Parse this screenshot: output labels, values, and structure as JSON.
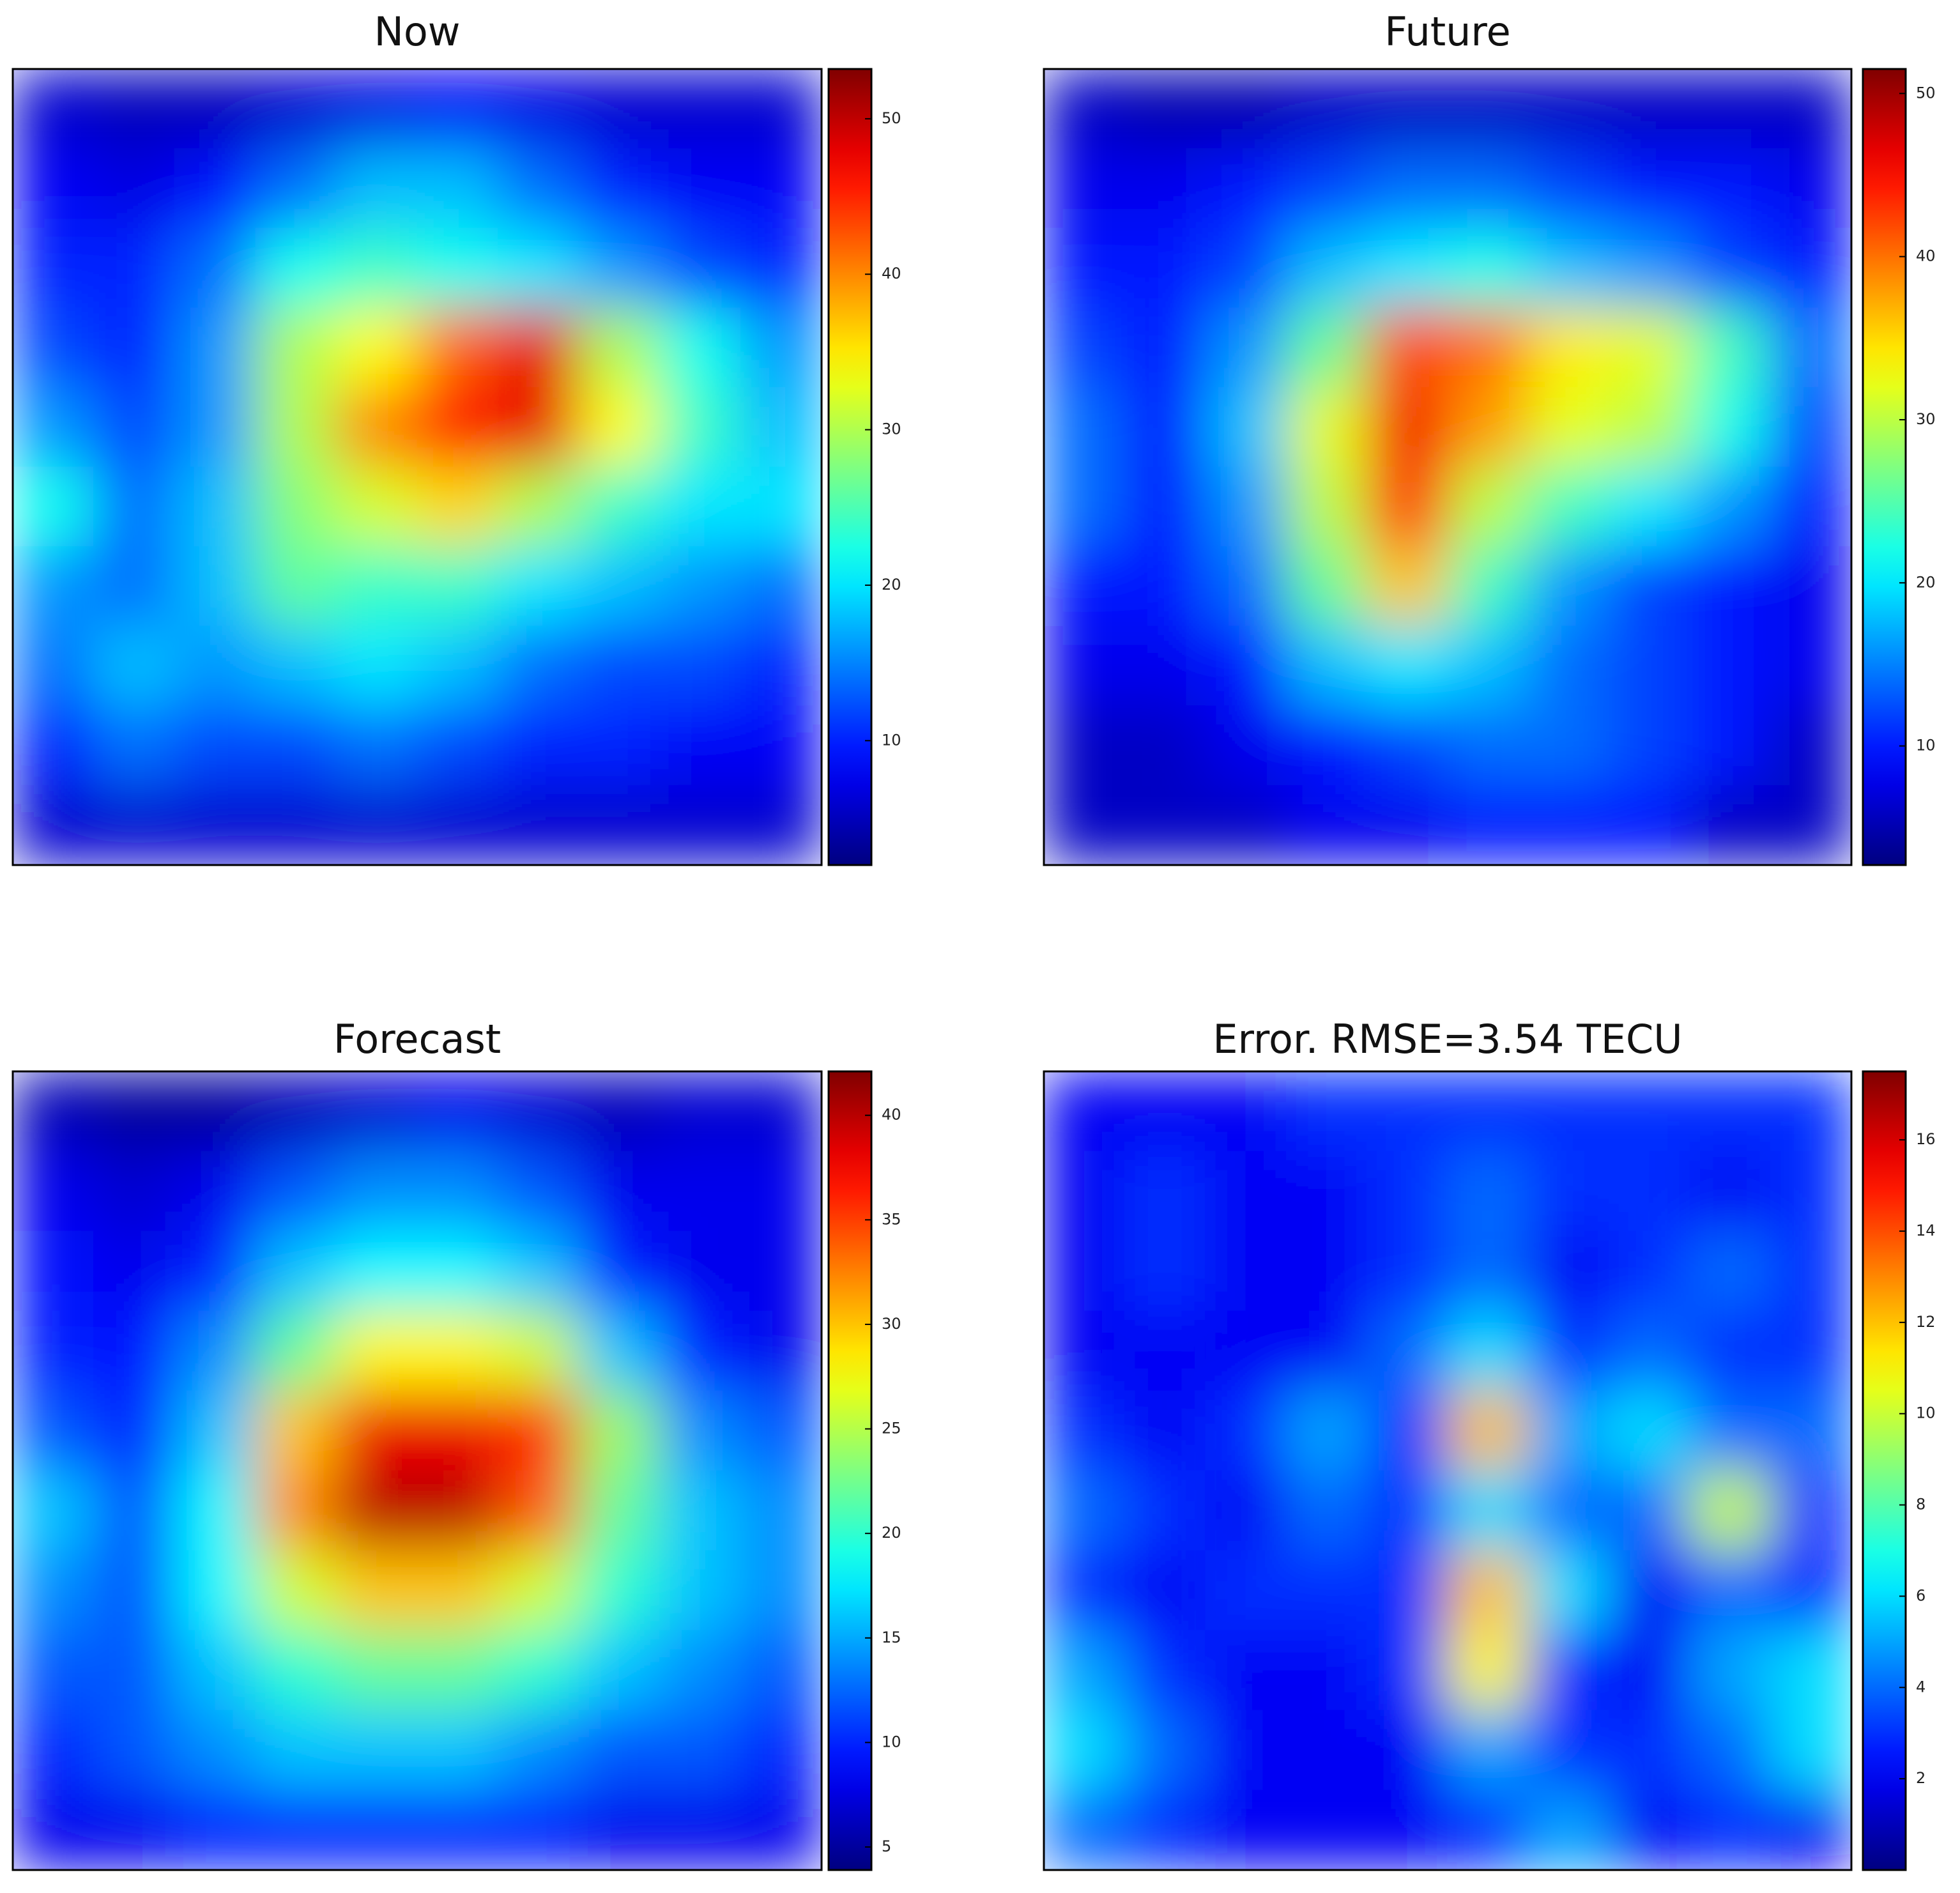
{
  "chart_data": [
    {
      "type": "heatmap",
      "title": "Now",
      "colormap": "jet",
      "zlim": [
        2,
        53.2
      ],
      "zticks": [
        10,
        20,
        30,
        40,
        50
      ],
      "z": [
        [
          6,
          5,
          5,
          6,
          7,
          8,
          7,
          6,
          6,
          6
        ],
        [
          8,
          7,
          9,
          14,
          18,
          18,
          14,
          10,
          8,
          8
        ],
        [
          10,
          10,
          14,
          22,
          24,
          22,
          20,
          16,
          12,
          10
        ],
        [
          12,
          10,
          16,
          30,
          34,
          42,
          48,
          30,
          22,
          16
        ],
        [
          16,
          12,
          16,
          30,
          40,
          46,
          48,
          34,
          24,
          18
        ],
        [
          22,
          14,
          18,
          28,
          32,
          36,
          30,
          24,
          20,
          20
        ],
        [
          16,
          14,
          18,
          26,
          24,
          24,
          20,
          18,
          16,
          14
        ],
        [
          14,
          18,
          16,
          18,
          20,
          18,
          14,
          12,
          12,
          10
        ],
        [
          10,
          14,
          12,
          12,
          14,
          12,
          10,
          10,
          8,
          8
        ],
        [
          6,
          6,
          6,
          6,
          6,
          6,
          6,
          6,
          6,
          6
        ]
      ]
    },
    {
      "type": "heatmap",
      "title": "Future",
      "colormap": "jet",
      "zlim": [
        2.7,
        51.5
      ],
      "zticks": [
        10,
        20,
        30,
        40,
        50
      ],
      "z": [
        [
          6,
          5,
          5,
          6,
          6,
          6,
          6,
          6,
          6,
          6
        ],
        [
          8,
          8,
          10,
          12,
          14,
          14,
          12,
          10,
          10,
          8
        ],
        [
          10,
          10,
          12,
          18,
          20,
          22,
          18,
          16,
          12,
          10
        ],
        [
          12,
          10,
          16,
          26,
          42,
          40,
          34,
          32,
          24,
          14
        ],
        [
          14,
          10,
          18,
          32,
          46,
          38,
          32,
          30,
          22,
          12
        ],
        [
          14,
          10,
          16,
          30,
          44,
          30,
          24,
          20,
          16,
          10
        ],
        [
          10,
          10,
          14,
          26,
          36,
          24,
          16,
          12,
          10,
          8
        ],
        [
          8,
          8,
          10,
          18,
          20,
          18,
          14,
          12,
          10,
          8
        ],
        [
          6,
          6,
          8,
          10,
          12,
          14,
          14,
          12,
          10,
          6
        ],
        [
          6,
          6,
          6,
          8,
          8,
          10,
          10,
          10,
          6,
          6
        ]
      ]
    },
    {
      "type": "heatmap",
      "title": "Forecast",
      "colormap": "jet",
      "zlim": [
        3.9,
        42.1
      ],
      "zticks": [
        5,
        10,
        15,
        20,
        25,
        30,
        35,
        40
      ],
      "z": [
        [
          6,
          5,
          5,
          6,
          7,
          8,
          7,
          6,
          7,
          7
        ],
        [
          8,
          7,
          8,
          12,
          14,
          14,
          12,
          8,
          8,
          8
        ],
        [
          9,
          8,
          10,
          16,
          18,
          18,
          16,
          10,
          8,
          8
        ],
        [
          10,
          9,
          14,
          22,
          28,
          28,
          26,
          16,
          10,
          8
        ],
        [
          12,
          10,
          16,
          30,
          38,
          38,
          36,
          24,
          14,
          12
        ],
        [
          16,
          12,
          18,
          32,
          40,
          40,
          34,
          22,
          16,
          14
        ],
        [
          14,
          12,
          18,
          26,
          30,
          30,
          26,
          20,
          16,
          14
        ],
        [
          12,
          12,
          16,
          20,
          22,
          22,
          20,
          16,
          14,
          12
        ],
        [
          10,
          12,
          14,
          16,
          16,
          16,
          14,
          12,
          12,
          10
        ],
        [
          8,
          8,
          10,
          10,
          10,
          10,
          10,
          8,
          8,
          8
        ]
      ]
    },
    {
      "type": "heatmap",
      "title": "Error. RMSE=3.54  TECU",
      "colormap": "jet",
      "zlim": [
        0,
        17.5
      ],
      "zticks": [
        2,
        4,
        6,
        8,
        10,
        12,
        14,
        16
      ],
      "z": [
        [
          2,
          2,
          2,
          3,
          3,
          3,
          3,
          3,
          3,
          3
        ],
        [
          2,
          3,
          2,
          2,
          3,
          4,
          3,
          3,
          2,
          3
        ],
        [
          2,
          3,
          2,
          2,
          3,
          4,
          2,
          3,
          4,
          3
        ],
        [
          2,
          2,
          2,
          2,
          4,
          6,
          3,
          4,
          3,
          3
        ],
        [
          3,
          2,
          3,
          5,
          3,
          12,
          5,
          6,
          4,
          4
        ],
        [
          4,
          3,
          2,
          4,
          3,
          6,
          4,
          4,
          10,
          3
        ],
        [
          3,
          2,
          3,
          3,
          3,
          12,
          6,
          2,
          4,
          3
        ],
        [
          5,
          3,
          2,
          2,
          3,
          11,
          3,
          2,
          5,
          6
        ],
        [
          6,
          4,
          2,
          2,
          2,
          5,
          3,
          3,
          4,
          6
        ],
        [
          4,
          3,
          2,
          2,
          2,
          3,
          5,
          2,
          3,
          2
        ]
      ]
    }
  ]
}
